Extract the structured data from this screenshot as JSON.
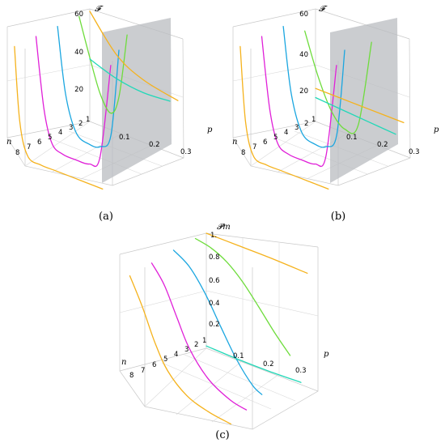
{
  "colors": {
    "yellow": "#f5b21c",
    "magenta": "#e020d8",
    "blue": "#1aa6e0",
    "green": "#6edc3c",
    "cyan": "#22d8b8",
    "plane": "#b9bcc0"
  },
  "panels": [
    {
      "label": "(a)",
      "zlabel": "𝓕",
      "xlabel": "p",
      "ylabel": "n",
      "z_ticks": [
        "60",
        "40",
        "20"
      ],
      "p_ticks": [
        "0.1",
        "0.2",
        "0.3"
      ],
      "n_ticks": [
        "8",
        "7",
        "6",
        "5",
        "4",
        "3",
        "2",
        "1"
      ]
    },
    {
      "label": "(b)",
      "zlabel": "𝓕",
      "xlabel": "p",
      "ylabel": "n",
      "z_ticks": [
        "60",
        "40",
        "20"
      ],
      "p_ticks": [
        "0.1",
        "0.2",
        "0.3"
      ],
      "n_ticks": [
        "8",
        "7",
        "6",
        "5",
        "4",
        "3",
        "2",
        "1"
      ]
    },
    {
      "label": "(c)",
      "zlabel": "𝓟m",
      "xlabel": "p",
      "ylabel": "n",
      "z_ticks": [
        "1.",
        "0.8",
        "0.6",
        "0.4",
        "0.2"
      ],
      "p_ticks": [
        "0.1",
        "0.2",
        "0.3"
      ],
      "n_ticks": [
        "8",
        "7",
        "6",
        "5",
        "4",
        "3",
        "2",
        "1"
      ]
    }
  ],
  "chart_data": [
    {
      "type": "line",
      "panel": "(a)",
      "zlabel": "𝓕",
      "xlabel": "p",
      "ylabel": "n",
      "zlim": [
        0,
        60
      ],
      "plim": [
        0,
        0.35
      ],
      "nlim": [
        1,
        8
      ],
      "plane_p": 0.1,
      "series": [
        {
          "color": "yellow",
          "n": 8,
          "p": [
            0.0,
            0.02,
            0.05,
            0.1,
            0.15,
            0.2,
            0.25,
            0.3,
            0.33
          ],
          "z": [
            60,
            20,
            3,
            1,
            1,
            1,
            1,
            1,
            1
          ]
        },
        {
          "color": "magenta",
          "n": 6,
          "p": [
            0.0,
            0.03,
            0.06,
            0.1,
            0.15,
            0.2,
            0.24,
            0.28
          ],
          "z": [
            60,
            22,
            5,
            1.5,
            1.2,
            1.8,
            8,
            60
          ]
        },
        {
          "color": "blue",
          "n": 4,
          "p": [
            0.0,
            0.03,
            0.07,
            0.12,
            0.16,
            0.2,
            0.23
          ],
          "z": [
            60,
            25,
            6,
            2.5,
            3.5,
            12,
            60
          ]
        },
        {
          "color": "green",
          "n": 2,
          "p": [
            0.0,
            0.04,
            0.08,
            0.12,
            0.15,
            0.18
          ],
          "z": [
            60,
            40,
            22,
            14,
            25,
            60
          ]
        },
        {
          "color": "yellow",
          "n": 1,
          "p": [
            0.0,
            0.1,
            0.2,
            0.33
          ],
          "z": [
            60,
            42,
            34,
            30
          ]
        },
        {
          "color": "cyan",
          "n": 1,
          "p": [
            0.0,
            0.1,
            0.2,
            0.3
          ],
          "z": [
            34,
            29,
            27,
            28
          ]
        }
      ]
    },
    {
      "type": "line",
      "panel": "(b)",
      "zlabel": "𝓕",
      "xlabel": "p",
      "ylabel": "n",
      "zlim": [
        0,
        60
      ],
      "plim": [
        0,
        0.35
      ],
      "nlim": [
        1,
        8
      ],
      "plane_p": 0.1,
      "series": [
        {
          "color": "yellow",
          "n": 8,
          "p": [
            0.0,
            0.02,
            0.05,
            0.1,
            0.15,
            0.2,
            0.25,
            0.3,
            0.33
          ],
          "z": [
            60,
            20,
            3,
            1,
            1,
            1,
            1,
            1,
            1
          ]
        },
        {
          "color": "magenta",
          "n": 6,
          "p": [
            0.0,
            0.03,
            0.06,
            0.1,
            0.15,
            0.2,
            0.24,
            0.28
          ],
          "z": [
            60,
            22,
            5,
            1.5,
            1.2,
            1.8,
            8,
            60
          ]
        },
        {
          "color": "blue",
          "n": 4,
          "p": [
            0.0,
            0.03,
            0.07,
            0.12,
            0.16,
            0.2,
            0.23
          ],
          "z": [
            60,
            25,
            6,
            2.5,
            3.5,
            12,
            60
          ]
        },
        {
          "color": "green",
          "n": 2,
          "p": [
            0.0,
            0.05,
            0.1,
            0.15,
            0.2,
            0.25
          ],
          "z": [
            52,
            30,
            14,
            7,
            12,
            60
          ]
        },
        {
          "color": "yellow",
          "n": 1,
          "p": [
            0.0,
            0.1,
            0.2,
            0.33
          ],
          "z": [
            18,
            18,
            18,
            18
          ]
        },
        {
          "color": "cyan",
          "n": 1,
          "p": [
            0.0,
            0.1,
            0.2,
            0.3
          ],
          "z": [
            13,
            12,
            11,
            10
          ]
        }
      ]
    },
    {
      "type": "line",
      "panel": "(c)",
      "zlabel": "𝓟m",
      "xlabel": "p",
      "ylabel": "n",
      "zlim": [
        0,
        1
      ],
      "plim": [
        0,
        0.35
      ],
      "nlim": [
        1,
        8
      ],
      "series": [
        {
          "color": "yellow",
          "n": 8,
          "p": [
            0.0,
            0.04,
            0.08,
            0.12,
            0.18,
            0.25,
            0.32
          ],
          "z": [
            0.95,
            0.72,
            0.45,
            0.25,
            0.1,
            0.03,
            0.0
          ]
        },
        {
          "color": "magenta",
          "n": 6,
          "p": [
            0.0,
            0.04,
            0.08,
            0.12,
            0.18,
            0.25,
            0.3
          ],
          "z": [
            0.97,
            0.82,
            0.58,
            0.35,
            0.15,
            0.04,
            0.01
          ]
        },
        {
          "color": "blue",
          "n": 4,
          "p": [
            0.0,
            0.05,
            0.1,
            0.15,
            0.2,
            0.25,
            0.28
          ],
          "z": [
            0.99,
            0.9,
            0.72,
            0.48,
            0.25,
            0.08,
            0.03
          ]
        },
        {
          "color": "green",
          "n": 2,
          "p": [
            0.0,
            0.05,
            0.1,
            0.15,
            0.2,
            0.25,
            0.3
          ],
          "z": [
            1.0,
            0.97,
            0.9,
            0.78,
            0.62,
            0.45,
            0.3
          ]
        },
        {
          "color": "yellow",
          "n": 1,
          "p": [
            0.0,
            0.1,
            0.2,
            0.32
          ],
          "z": [
            1.0,
            1.0,
            1.0,
            0.99
          ]
        },
        {
          "color": "cyan",
          "n": 1,
          "p": [
            0.0,
            0.1,
            0.2,
            0.3
          ],
          "z": [
            0.02,
            0.01,
            0.01,
            0.02
          ]
        }
      ]
    }
  ]
}
